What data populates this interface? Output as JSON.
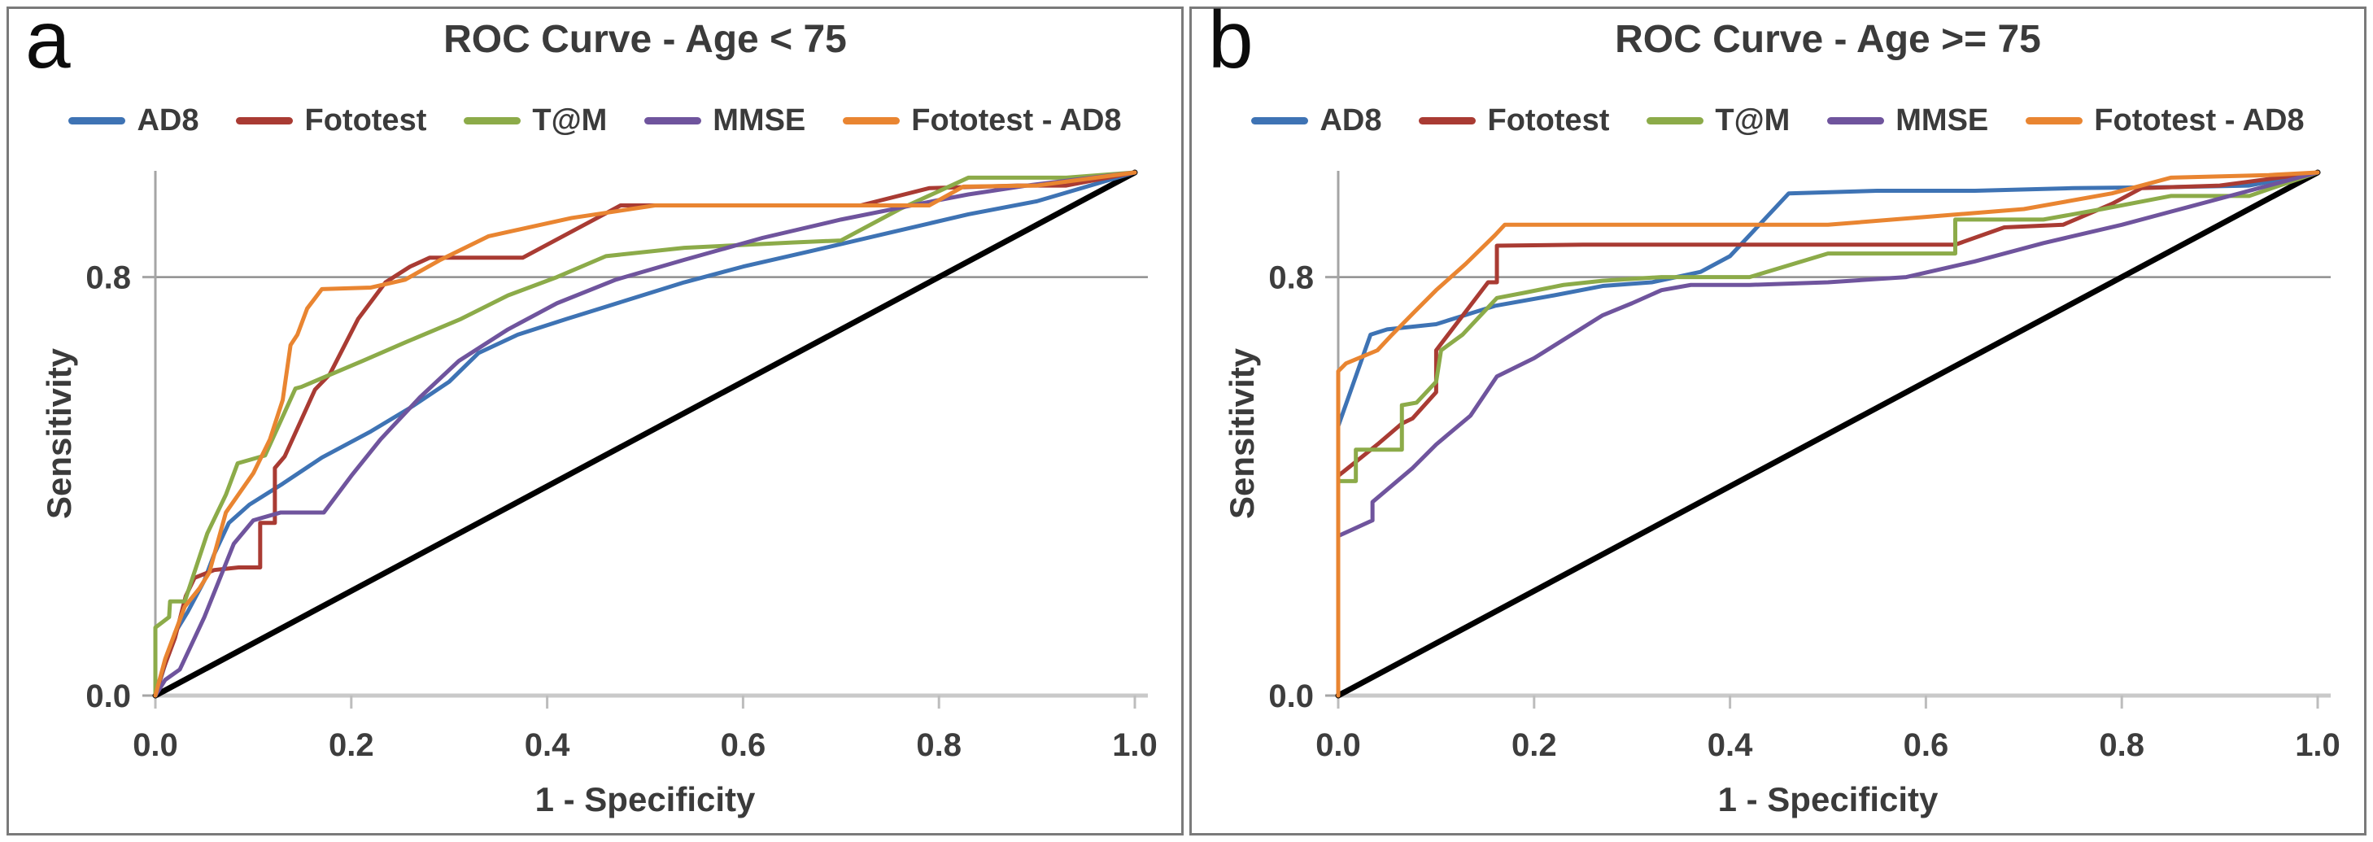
{
  "panels": [
    {
      "corner_label": "a"
    },
    {
      "corner_label": "b"
    }
  ],
  "chart_data": [
    {
      "type": "line",
      "title": "ROC Curve - Age < 75",
      "xlabel": "1 - Specificity",
      "ylabel": "Sensitivity",
      "xlim": [
        0,
        1
      ],
      "ylim": [
        0,
        1
      ],
      "x_tick_values": [
        0,
        0.2,
        0.4,
        0.6,
        0.8,
        1.0
      ],
      "x_tick_labels": [
        "0.0",
        "0.2",
        "0.4",
        "0.6",
        "0.8",
        "1.0"
      ],
      "y_tick_values": [
        0,
        0.8
      ],
      "y_tick_labels": [
        "0.0",
        "0.8"
      ],
      "gridlines_y": [
        0.8
      ],
      "legend_position": "top",
      "grid": "single horizontal line at sensitivity 0.8",
      "series": [
        {
          "name": "reference-diagonal",
          "color": "#000000",
          "width": 7,
          "in_legend": false,
          "points": [
            [
              0,
              0
            ],
            [
              1,
              1
            ]
          ]
        },
        {
          "name": "AD8",
          "color": "#3E73B4",
          "width": 5,
          "points": [
            [
              0,
              0
            ],
            [
              0.01,
              0.06
            ],
            [
              0.02,
              0.12
            ],
            [
              0.033,
              0.16
            ],
            [
              0.05,
              0.22
            ],
            [
              0.06,
              0.27
            ],
            [
              0.075,
              0.33
            ],
            [
              0.096,
              0.365
            ],
            [
              0.13,
              0.405
            ],
            [
              0.17,
              0.455
            ],
            [
              0.22,
              0.505
            ],
            [
              0.26,
              0.55
            ],
            [
              0.3,
              0.6
            ],
            [
              0.33,
              0.655
            ],
            [
              0.37,
              0.69
            ],
            [
              0.42,
              0.72
            ],
            [
              0.48,
              0.755
            ],
            [
              0.54,
              0.79
            ],
            [
              0.6,
              0.82
            ],
            [
              0.67,
              0.85
            ],
            [
              0.75,
              0.885
            ],
            [
              0.83,
              0.92
            ],
            [
              0.9,
              0.945
            ],
            [
              1,
              1
            ]
          ]
        },
        {
          "name": "Fototest",
          "color": "#A93B33",
          "width": 5,
          "points": [
            [
              0,
              0
            ],
            [
              0.008,
              0.05
            ],
            [
              0.02,
              0.11
            ],
            [
              0.031,
              0.19
            ],
            [
              0.04,
              0.225
            ],
            [
              0.06,
              0.24
            ],
            [
              0.085,
              0.245
            ],
            [
              0.107,
              0.245
            ],
            [
              0.107,
              0.33
            ],
            [
              0.122,
              0.33
            ],
            [
              0.122,
              0.435
            ],
            [
              0.132,
              0.457
            ],
            [
              0.163,
              0.585
            ],
            [
              0.178,
              0.614
            ],
            [
              0.207,
              0.72
            ],
            [
              0.235,
              0.79
            ],
            [
              0.26,
              0.82
            ],
            [
              0.28,
              0.837
            ],
            [
              0.375,
              0.837
            ],
            [
              0.475,
              0.937
            ],
            [
              0.72,
              0.937
            ],
            [
              0.79,
              0.97
            ],
            [
              0.88,
              0.975
            ],
            [
              0.93,
              0.975
            ],
            [
              1,
              1
            ]
          ]
        },
        {
          "name": "T@M",
          "color": "#8CAB49",
          "width": 5,
          "points": [
            [
              0,
              0
            ],
            [
              0,
              0.13
            ],
            [
              0.014,
              0.15
            ],
            [
              0.015,
              0.18
            ],
            [
              0.03,
              0.18
            ],
            [
              0.053,
              0.31
            ],
            [
              0.072,
              0.384
            ],
            [
              0.084,
              0.444
            ],
            [
              0.112,
              0.459
            ],
            [
              0.143,
              0.587
            ],
            [
              0.149,
              0.59
            ],
            [
              0.174,
              0.61
            ],
            [
              0.212,
              0.64
            ],
            [
              0.255,
              0.675
            ],
            [
              0.312,
              0.72
            ],
            [
              0.36,
              0.765
            ],
            [
              0.41,
              0.8
            ],
            [
              0.46,
              0.84
            ],
            [
              0.54,
              0.856
            ],
            [
              0.65,
              0.866
            ],
            [
              0.7,
              0.87
            ],
            [
              0.76,
              0.93
            ],
            [
              0.83,
              0.99
            ],
            [
              0.93,
              0.99
            ],
            [
              1,
              1
            ]
          ]
        },
        {
          "name": "MMSE",
          "color": "#6F549D",
          "width": 5,
          "points": [
            [
              0,
              0
            ],
            [
              0.01,
              0.03
            ],
            [
              0.025,
              0.05
            ],
            [
              0.04,
              0.11
            ],
            [
              0.05,
              0.15
            ],
            [
              0.065,
              0.22
            ],
            [
              0.08,
              0.29
            ],
            [
              0.1,
              0.335
            ],
            [
              0.128,
              0.35
            ],
            [
              0.172,
              0.35
            ],
            [
              0.2,
              0.42
            ],
            [
              0.23,
              0.49
            ],
            [
              0.27,
              0.57
            ],
            [
              0.31,
              0.64
            ],
            [
              0.36,
              0.7
            ],
            [
              0.41,
              0.75
            ],
            [
              0.47,
              0.795
            ],
            [
              0.54,
              0.833
            ],
            [
              0.62,
              0.875
            ],
            [
              0.7,
              0.91
            ],
            [
              0.78,
              0.94
            ],
            [
              0.83,
              0.958
            ],
            [
              0.89,
              0.975
            ],
            [
              1,
              1
            ]
          ]
        },
        {
          "name": "Fototest - AD8",
          "color": "#E98531",
          "width": 5,
          "points": [
            [
              0,
              0
            ],
            [
              0.01,
              0.07
            ],
            [
              0.02,
              0.12
            ],
            [
              0.03,
              0.17
            ],
            [
              0.045,
              0.205
            ],
            [
              0.055,
              0.235
            ],
            [
              0.072,
              0.35
            ],
            [
              0.1,
              0.425
            ],
            [
              0.117,
              0.49
            ],
            [
              0.13,
              0.565
            ],
            [
              0.138,
              0.67
            ],
            [
              0.145,
              0.69
            ],
            [
              0.155,
              0.74
            ],
            [
              0.17,
              0.777
            ],
            [
              0.22,
              0.78
            ],
            [
              0.255,
              0.795
            ],
            [
              0.29,
              0.832
            ],
            [
              0.34,
              0.878
            ],
            [
              0.425,
              0.913
            ],
            [
              0.51,
              0.937
            ],
            [
              0.79,
              0.937
            ],
            [
              0.825,
              0.973
            ],
            [
              0.9,
              0.975
            ],
            [
              1,
              1
            ]
          ]
        }
      ]
    },
    {
      "type": "line",
      "title": "ROC Curve - Age >= 75",
      "xlabel": "1 - Specificity",
      "ylabel": "Sensitivity",
      "xlim": [
        0,
        1
      ],
      "ylim": [
        0,
        1
      ],
      "x_tick_values": [
        0,
        0.2,
        0.4,
        0.6,
        0.8,
        1.0
      ],
      "x_tick_labels": [
        "0.0",
        "0.2",
        "0.4",
        "0.6",
        "0.8",
        "1.0"
      ],
      "y_tick_values": [
        0,
        0.8
      ],
      "y_tick_labels": [
        "0.0",
        "0.8"
      ],
      "gridlines_y": [
        0.8
      ],
      "legend_position": "top",
      "grid": "single horizontal line at sensitivity 0.8",
      "series": [
        {
          "name": "reference-diagonal",
          "color": "#000000",
          "width": 7,
          "in_legend": false,
          "points": [
            [
              0,
              0
            ],
            [
              1,
              1
            ]
          ]
        },
        {
          "name": "AD8",
          "color": "#3E73B4",
          "width": 5,
          "points": [
            [
              0,
              0.515
            ],
            [
              0.033,
              0.69
            ],
            [
              0.05,
              0.7
            ],
            [
              0.1,
              0.71
            ],
            [
              0.16,
              0.745
            ],
            [
              0.22,
              0.765
            ],
            [
              0.27,
              0.783
            ],
            [
              0.32,
              0.79
            ],
            [
              0.37,
              0.81
            ],
            [
              0.4,
              0.84
            ],
            [
              0.46,
              0.96
            ],
            [
              0.55,
              0.965
            ],
            [
              0.65,
              0.965
            ],
            [
              0.75,
              0.97
            ],
            [
              0.85,
              0.972
            ],
            [
              0.93,
              0.975
            ],
            [
              1,
              1
            ]
          ]
        },
        {
          "name": "Fototest",
          "color": "#A93B33",
          "width": 5,
          "points": [
            [
              0,
              0.42
            ],
            [
              0.02,
              0.45
            ],
            [
              0.04,
              0.48
            ],
            [
              0.065,
              0.52
            ],
            [
              0.076,
              0.53
            ],
            [
              0.1,
              0.58
            ],
            [
              0.1,
              0.66
            ],
            [
              0.153,
              0.79
            ],
            [
              0.162,
              0.79
            ],
            [
              0.162,
              0.86
            ],
            [
              0.25,
              0.862
            ],
            [
              0.4,
              0.862
            ],
            [
              0.55,
              0.862
            ],
            [
              0.63,
              0.862
            ],
            [
              0.68,
              0.895
            ],
            [
              0.74,
              0.9
            ],
            [
              0.79,
              0.94
            ],
            [
              0.82,
              0.97
            ],
            [
              0.9,
              0.975
            ],
            [
              1,
              1
            ]
          ]
        },
        {
          "name": "T@M",
          "color": "#8CAB49",
          "width": 5,
          "points": [
            [
              0,
              0.41
            ],
            [
              0.018,
              0.41
            ],
            [
              0.018,
              0.47
            ],
            [
              0.065,
              0.47
            ],
            [
              0.065,
              0.555
            ],
            [
              0.08,
              0.56
            ],
            [
              0.1,
              0.6
            ],
            [
              0.105,
              0.66
            ],
            [
              0.127,
              0.69
            ],
            [
              0.162,
              0.76
            ],
            [
              0.19,
              0.77
            ],
            [
              0.23,
              0.785
            ],
            [
              0.27,
              0.793
            ],
            [
              0.33,
              0.8
            ],
            [
              0.42,
              0.8
            ],
            [
              0.5,
              0.845
            ],
            [
              0.63,
              0.845
            ],
            [
              0.63,
              0.91
            ],
            [
              0.72,
              0.91
            ],
            [
              0.78,
              0.93
            ],
            [
              0.85,
              0.955
            ],
            [
              0.93,
              0.955
            ],
            [
              1,
              1
            ]
          ]
        },
        {
          "name": "MMSE",
          "color": "#6F549D",
          "width": 5,
          "points": [
            [
              0,
              0.305
            ],
            [
              0.035,
              0.335
            ],
            [
              0.035,
              0.37
            ],
            [
              0.076,
              0.435
            ],
            [
              0.1,
              0.48
            ],
            [
              0.135,
              0.535
            ],
            [
              0.162,
              0.61
            ],
            [
              0.2,
              0.645
            ],
            [
              0.27,
              0.727
            ],
            [
              0.3,
              0.75
            ],
            [
              0.33,
              0.775
            ],
            [
              0.36,
              0.785
            ],
            [
              0.42,
              0.785
            ],
            [
              0.5,
              0.79
            ],
            [
              0.58,
              0.8
            ],
            [
              0.65,
              0.83
            ],
            [
              0.72,
              0.865
            ],
            [
              0.8,
              0.9
            ],
            [
              0.87,
              0.935
            ],
            [
              0.93,
              0.965
            ],
            [
              1,
              1
            ]
          ]
        },
        {
          "name": "Fototest - AD8",
          "color": "#E98531",
          "width": 5,
          "points": [
            [
              0,
              0
            ],
            [
              0,
              0.62
            ],
            [
              0.008,
              0.635
            ],
            [
              0.04,
              0.66
            ],
            [
              0.055,
              0.69
            ],
            [
              0.076,
              0.73
            ],
            [
              0.1,
              0.775
            ],
            [
              0.13,
              0.825
            ],
            [
              0.16,
              0.88
            ],
            [
              0.17,
              0.9
            ],
            [
              0.3,
              0.9
            ],
            [
              0.42,
              0.9
            ],
            [
              0.5,
              0.9
            ],
            [
              0.6,
              0.915
            ],
            [
              0.7,
              0.93
            ],
            [
              0.79,
              0.96
            ],
            [
              0.81,
              0.97
            ],
            [
              0.85,
              0.99
            ],
            [
              0.95,
              0.995
            ],
            [
              1,
              1
            ]
          ]
        }
      ]
    }
  ]
}
